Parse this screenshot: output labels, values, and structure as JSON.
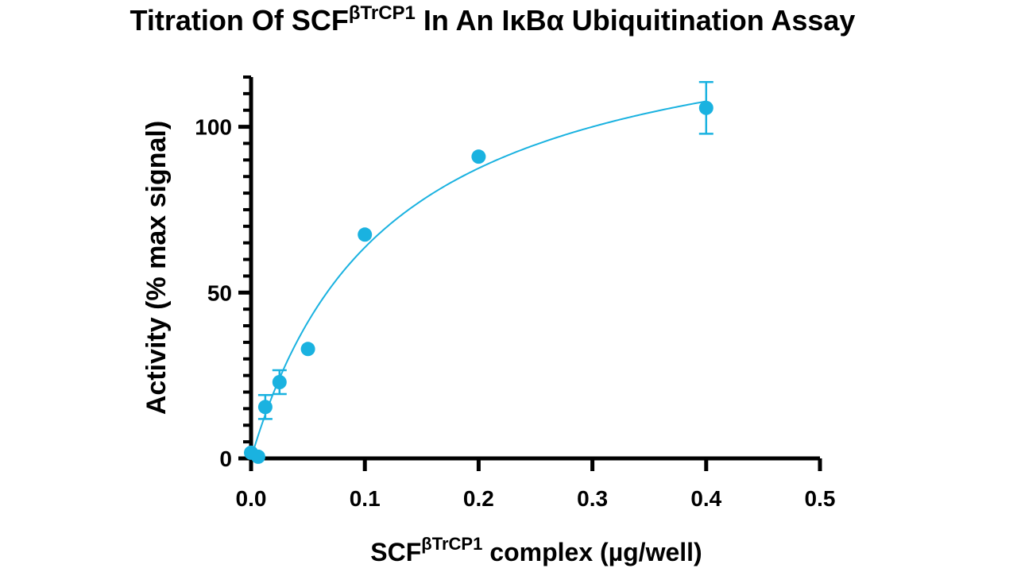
{
  "chart_data": {
    "type": "scatter",
    "title": {
      "text": "Titration Of SCF",
      "superscript": "βTrCP1",
      "rest": "In An IκBα Ubiquitination Assay"
    },
    "xlabel": {
      "text": "SCF",
      "superscript": "βTrCP1",
      "rest": "complex (µg/well)"
    },
    "ylabel": "Activity (% max signal)",
    "x": [
      0,
      0.00625,
      0.0125,
      0.025,
      0.05,
      0.1,
      0.2,
      0.4
    ],
    "values": [
      1.7,
      0.5,
      15.5,
      23,
      33,
      67.5,
      91,
      105.7
    ],
    "errors": [
      null,
      null,
      3.6,
      3.6,
      null,
      null,
      null,
      7.8
    ],
    "color": "#1ab2e0",
    "fit": {
      "vmax": 140,
      "km": 0.12
    },
    "xlim": [
      0,
      0.5
    ],
    "xticks": [
      {
        "value": 0,
        "label": "0.0"
      },
      0.1,
      0.2,
      0.3,
      0.4,
      0.5
    ],
    "ylim": [
      0,
      115
    ],
    "yticks": [
      0,
      50,
      100
    ],
    "yminorticks": [
      5,
      10,
      15,
      20,
      25,
      30,
      35,
      40,
      45,
      55,
      60,
      65,
      70,
      75,
      80,
      85,
      90,
      95,
      105,
      110,
      115
    ]
  }
}
